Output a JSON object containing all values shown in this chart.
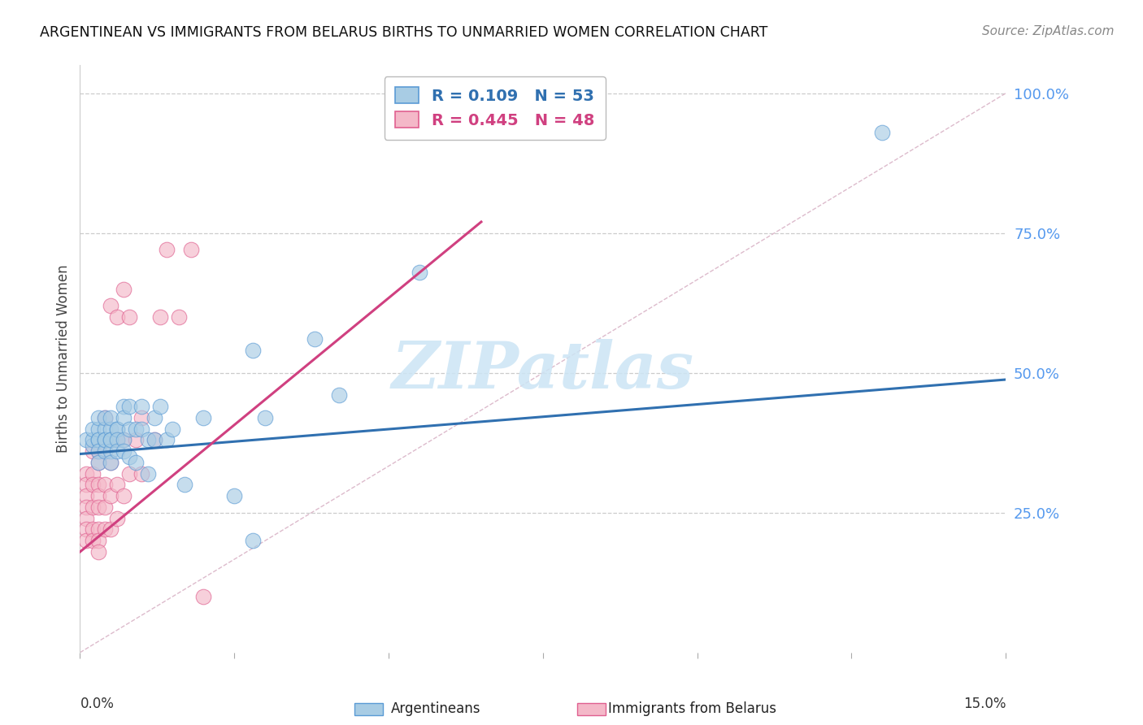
{
  "title": "ARGENTINEAN VS IMMIGRANTS FROM BELARUS BIRTHS TO UNMARRIED WOMEN CORRELATION CHART",
  "source": "Source: ZipAtlas.com",
  "ylabel": "Births to Unmarried Women",
  "xlim": [
    0.0,
    0.15
  ],
  "ylim": [
    0.0,
    1.05
  ],
  "legend_blue_r": "R = 0.109",
  "legend_blue_n": "N = 53",
  "legend_pink_r": "R = 0.445",
  "legend_pink_n": "N = 48",
  "blue_fill": "#a8cce4",
  "blue_edge": "#5b9bd5",
  "pink_fill": "#f4b8c8",
  "pink_edge": "#e06090",
  "line_blue": "#3070b0",
  "line_pink": "#d04080",
  "diag_color": "#cccccc",
  "ytick_color": "#5599ee",
  "watermark_color": "#cce5f5",
  "blue_x": [
    0.001,
    0.002,
    0.002,
    0.002,
    0.003,
    0.003,
    0.003,
    0.003,
    0.003,
    0.003,
    0.004,
    0.004,
    0.004,
    0.004,
    0.004,
    0.005,
    0.005,
    0.005,
    0.005,
    0.005,
    0.005,
    0.006,
    0.006,
    0.006,
    0.006,
    0.007,
    0.007,
    0.007,
    0.007,
    0.008,
    0.008,
    0.008,
    0.009,
    0.009,
    0.01,
    0.01,
    0.011,
    0.011,
    0.012,
    0.012,
    0.013,
    0.014,
    0.015,
    0.017,
    0.02,
    0.025,
    0.03,
    0.038,
    0.042,
    0.055,
    0.028,
    0.028,
    0.13
  ],
  "blue_y": [
    0.38,
    0.37,
    0.38,
    0.4,
    0.38,
    0.4,
    0.42,
    0.38,
    0.36,
    0.34,
    0.4,
    0.42,
    0.38,
    0.36,
    0.38,
    0.4,
    0.42,
    0.38,
    0.36,
    0.34,
    0.38,
    0.4,
    0.4,
    0.38,
    0.36,
    0.44,
    0.42,
    0.38,
    0.36,
    0.44,
    0.4,
    0.35,
    0.4,
    0.34,
    0.4,
    0.44,
    0.38,
    0.32,
    0.42,
    0.38,
    0.44,
    0.38,
    0.4,
    0.3,
    0.42,
    0.28,
    0.42,
    0.56,
    0.46,
    0.68,
    0.2,
    0.54,
    0.93
  ],
  "pink_x": [
    0.001,
    0.001,
    0.001,
    0.001,
    0.001,
    0.001,
    0.001,
    0.002,
    0.002,
    0.002,
    0.002,
    0.002,
    0.002,
    0.003,
    0.003,
    0.003,
    0.003,
    0.003,
    0.003,
    0.003,
    0.003,
    0.004,
    0.004,
    0.004,
    0.004,
    0.004,
    0.005,
    0.005,
    0.005,
    0.005,
    0.006,
    0.006,
    0.006,
    0.006,
    0.007,
    0.007,
    0.007,
    0.008,
    0.008,
    0.009,
    0.01,
    0.01,
    0.012,
    0.013,
    0.014,
    0.016,
    0.018,
    0.02
  ],
  "pink_y": [
    0.32,
    0.3,
    0.28,
    0.26,
    0.24,
    0.22,
    0.2,
    0.36,
    0.32,
    0.3,
    0.26,
    0.22,
    0.2,
    0.36,
    0.34,
    0.3,
    0.28,
    0.26,
    0.22,
    0.2,
    0.18,
    0.42,
    0.36,
    0.3,
    0.26,
    0.22,
    0.62,
    0.34,
    0.28,
    0.22,
    0.6,
    0.38,
    0.3,
    0.24,
    0.65,
    0.38,
    0.28,
    0.6,
    0.32,
    0.38,
    0.42,
    0.32,
    0.38,
    0.6,
    0.72,
    0.6,
    0.72,
    0.1
  ],
  "blue_trend_x": [
    0.0,
    0.15
  ],
  "blue_trend_y": [
    0.355,
    0.488
  ],
  "pink_trend_x": [
    0.0,
    0.065
  ],
  "pink_trend_y": [
    0.18,
    0.77
  ],
  "xtick_positions": [
    0.0,
    0.025,
    0.05,
    0.075,
    0.1,
    0.125,
    0.15
  ],
  "ytick_positions": [
    0.0,
    0.25,
    0.5,
    0.75,
    1.0
  ],
  "ytick_labels": [
    "",
    "25.0%",
    "50.0%",
    "75.0%",
    "100.0%"
  ]
}
